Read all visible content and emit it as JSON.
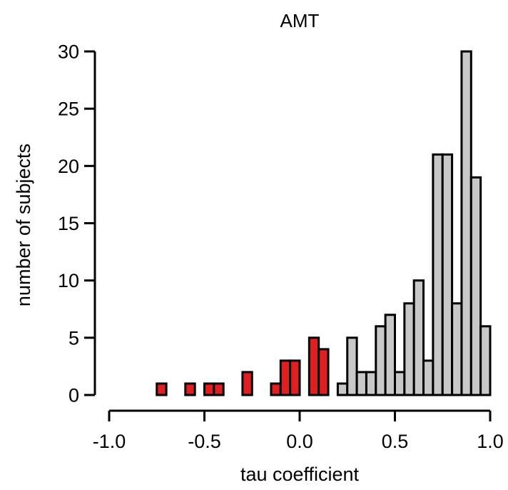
{
  "chart_data": {
    "type": "bar",
    "title": "AMT",
    "xlabel": "tau coefficient",
    "ylabel": "number of subjects",
    "xlim": [
      -1.0,
      1.0
    ],
    "ylim": [
      0,
      30
    ],
    "x_ticks": [
      "-1.0",
      "-0.5",
      "0.0",
      "0.5",
      "1.0"
    ],
    "y_ticks": [
      "0",
      "5",
      "10",
      "15",
      "20",
      "25",
      "30"
    ],
    "bin_width": 0.05,
    "grid": false,
    "colors": {
      "negative": "#e02020",
      "positive": "#c8c8c8",
      "outline": "#000000"
    },
    "series": [
      {
        "color_key": "negative",
        "bins": [
          {
            "x0": -0.75,
            "x1": -0.7,
            "value": 1
          },
          {
            "x0": -0.6,
            "x1": -0.55,
            "value": 1
          },
          {
            "x0": -0.5,
            "x1": -0.45,
            "value": 1
          },
          {
            "x0": -0.45,
            "x1": -0.4,
            "value": 1
          },
          {
            "x0": -0.3,
            "x1": -0.25,
            "value": 2
          },
          {
            "x0": -0.15,
            "x1": -0.1,
            "value": 1
          },
          {
            "x0": -0.1,
            "x1": -0.05,
            "value": 3
          },
          {
            "x0": -0.05,
            "x1": 0.0,
            "value": 3
          },
          {
            "x0": 0.05,
            "x1": 0.1,
            "value": 5
          },
          {
            "x0": 0.1,
            "x1": 0.15,
            "value": 4
          }
        ]
      },
      {
        "color_key": "positive",
        "bins": [
          {
            "x0": 0.2,
            "x1": 0.25,
            "value": 1
          },
          {
            "x0": 0.25,
            "x1": 0.3,
            "value": 5
          },
          {
            "x0": 0.3,
            "x1": 0.35,
            "value": 2
          },
          {
            "x0": 0.35,
            "x1": 0.4,
            "value": 2
          },
          {
            "x0": 0.4,
            "x1": 0.45,
            "value": 6
          },
          {
            "x0": 0.45,
            "x1": 0.5,
            "value": 7
          },
          {
            "x0": 0.5,
            "x1": 0.55,
            "value": 2
          },
          {
            "x0": 0.55,
            "x1": 0.6,
            "value": 8
          },
          {
            "x0": 0.6,
            "x1": 0.65,
            "value": 10
          },
          {
            "x0": 0.65,
            "x1": 0.7,
            "value": 3
          },
          {
            "x0": 0.7,
            "x1": 0.75,
            "value": 21
          },
          {
            "x0": 0.75,
            "x1": 0.8,
            "value": 21
          },
          {
            "x0": 0.8,
            "x1": 0.85,
            "value": 8
          },
          {
            "x0": 0.85,
            "x1": 0.9,
            "value": 30
          },
          {
            "x0": 0.9,
            "x1": 0.95,
            "value": 19
          },
          {
            "x0": 0.95,
            "x1": 1.0,
            "value": 6
          }
        ]
      }
    ]
  }
}
